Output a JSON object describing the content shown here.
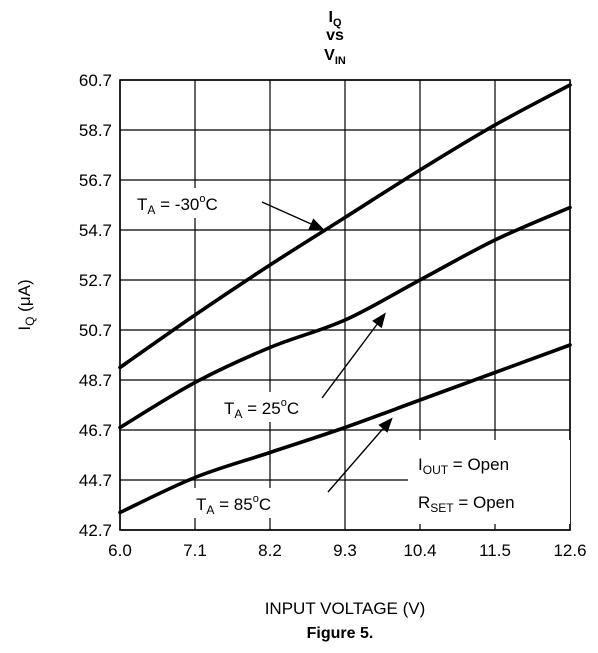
{
  "caption": "Figure 5.",
  "chart_data": {
    "type": "line",
    "title": {
      "line1_main": "I",
      "line1_sub": "Q",
      "line2": "vs",
      "line3_main": "V",
      "line3_sub": "IN"
    },
    "xlabel": "INPUT VOLTAGE (V)",
    "ylabel": {
      "main": "I",
      "sub": "Q",
      "unit": " (μA)"
    },
    "xlim": [
      6.0,
      12.6
    ],
    "ylim": [
      42.7,
      60.7
    ],
    "xticks": [
      "6.0",
      "7.1",
      "8.2",
      "9.3",
      "10.4",
      "11.5",
      "12.6"
    ],
    "yticks": [
      "42.7",
      "44.7",
      "46.7",
      "48.7",
      "50.7",
      "52.7",
      "54.7",
      "56.7",
      "58.7",
      "60.7"
    ],
    "grid": true,
    "series": [
      {
        "id": "t-30",
        "x": [
          6.0,
          7.1,
          8.2,
          9.3,
          10.4,
          11.5,
          12.6
        ],
        "y": [
          49.2,
          51.3,
          53.3,
          55.2,
          57.1,
          58.9,
          60.5
        ]
      },
      {
        "id": "t25",
        "x": [
          6.0,
          7.1,
          8.2,
          9.3,
          10.4,
          11.5,
          12.6
        ],
        "y": [
          46.8,
          48.6,
          50.0,
          51.1,
          52.7,
          54.3,
          55.6
        ]
      },
      {
        "id": "t85",
        "x": [
          6.0,
          7.1,
          8.2,
          9.3,
          10.4,
          11.5,
          12.6
        ],
        "y": [
          43.4,
          44.8,
          45.8,
          46.8,
          47.9,
          49.0,
          50.1
        ]
      }
    ],
    "annotations": [
      {
        "main": "T",
        "sub": "A",
        "value": " = -30",
        "sup": "o",
        "unit": "C",
        "target_x": 9.0,
        "target_y": 54.7
      },
      {
        "main": "T",
        "sub": "A",
        "value": " = 25",
        "sup": "o",
        "unit": "C",
        "target_x": 9.9,
        "target_y": 51.4
      },
      {
        "main": "T",
        "sub": "A",
        "value": " = 85",
        "sup": "o",
        "unit": "C",
        "target_x": 10.0,
        "target_y": 47.2
      }
    ],
    "conditions": [
      {
        "main": "I",
        "sub": "OUT",
        "rest": " = Open"
      },
      {
        "main": "R",
        "sub": "SET",
        "rest": " = Open"
      }
    ]
  }
}
